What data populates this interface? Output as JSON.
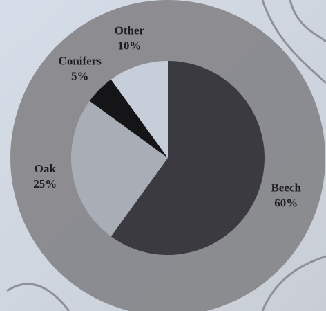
{
  "chart_data": {
    "type": "pie",
    "categories": [
      "Beech",
      "Oak",
      "Conifers",
      "Other"
    ],
    "values": [
      60,
      25,
      5,
      10
    ],
    "value_labels": [
      "60%",
      "25%",
      "5%",
      "10%"
    ],
    "colors": [
      "#3a3a40",
      "#a9aeb6",
      "#151517",
      "#c6ced9"
    ]
  }
}
